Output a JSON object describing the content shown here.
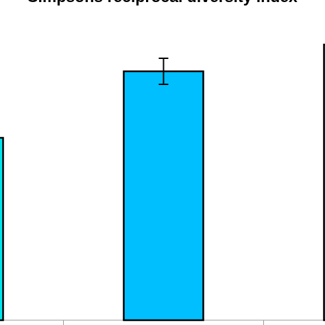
{
  "chart_data": {
    "type": "bar",
    "title": "Simpsons reciprocal diversity index",
    "categories": [
      null,
      null,
      null
    ],
    "values": [
      2.66,
      3.63,
      4.02
    ],
    "errors": [
      null,
      0.19,
      null
    ],
    "colors": [
      "#00e5ee",
      "#00bfff",
      "#00bfff"
    ]
  }
}
